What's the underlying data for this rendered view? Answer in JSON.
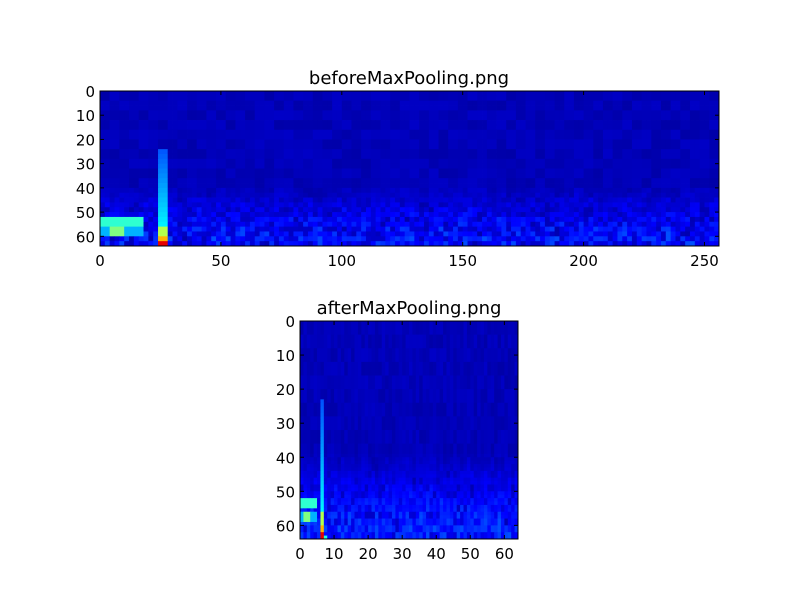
{
  "chart_data": [
    {
      "type": "heatmap",
      "title": "beforeMaxPooling.png",
      "colormap": "jet",
      "columns": 256,
      "rows": 64,
      "xlim": [
        0,
        256
      ],
      "ylim": [
        64,
        0
      ],
      "xticks": [
        "0",
        "50",
        "100",
        "150",
        "200",
        "250"
      ],
      "yticks": [
        "0",
        "10",
        "20",
        "30",
        "40",
        "50",
        "60"
      ],
      "grid": false,
      "features": [
        {
          "kind": "vertical-streak",
          "x": 25,
          "y_from": 23,
          "y_to": 64,
          "peak_at_y": 62
        },
        {
          "kind": "horizontal-band",
          "y": 53,
          "x_from": 0,
          "x_to": 18
        },
        {
          "kind": "horizontal-band",
          "y": 57,
          "x_from": 0,
          "x_to": 18
        }
      ]
    },
    {
      "type": "heatmap",
      "title": "afterMaxPooling.png",
      "colormap": "jet",
      "columns": 64,
      "rows": 64,
      "xlim": [
        0,
        64
      ],
      "ylim": [
        64,
        0
      ],
      "xticks": [
        "0",
        "10",
        "20",
        "30",
        "40",
        "50",
        "60"
      ],
      "yticks": [
        "0",
        "10",
        "20",
        "30",
        "40",
        "50",
        "60"
      ],
      "grid": false,
      "features": [
        {
          "kind": "vertical-streak",
          "x": 6,
          "y_from": 23,
          "y_to": 64,
          "peak_at_y": 62
        },
        {
          "kind": "horizontal-band",
          "y": 53,
          "x_from": 0,
          "x_to": 4.5
        },
        {
          "kind": "horizontal-band",
          "y": 57,
          "x_from": 0,
          "x_to": 4.5
        }
      ]
    }
  ]
}
